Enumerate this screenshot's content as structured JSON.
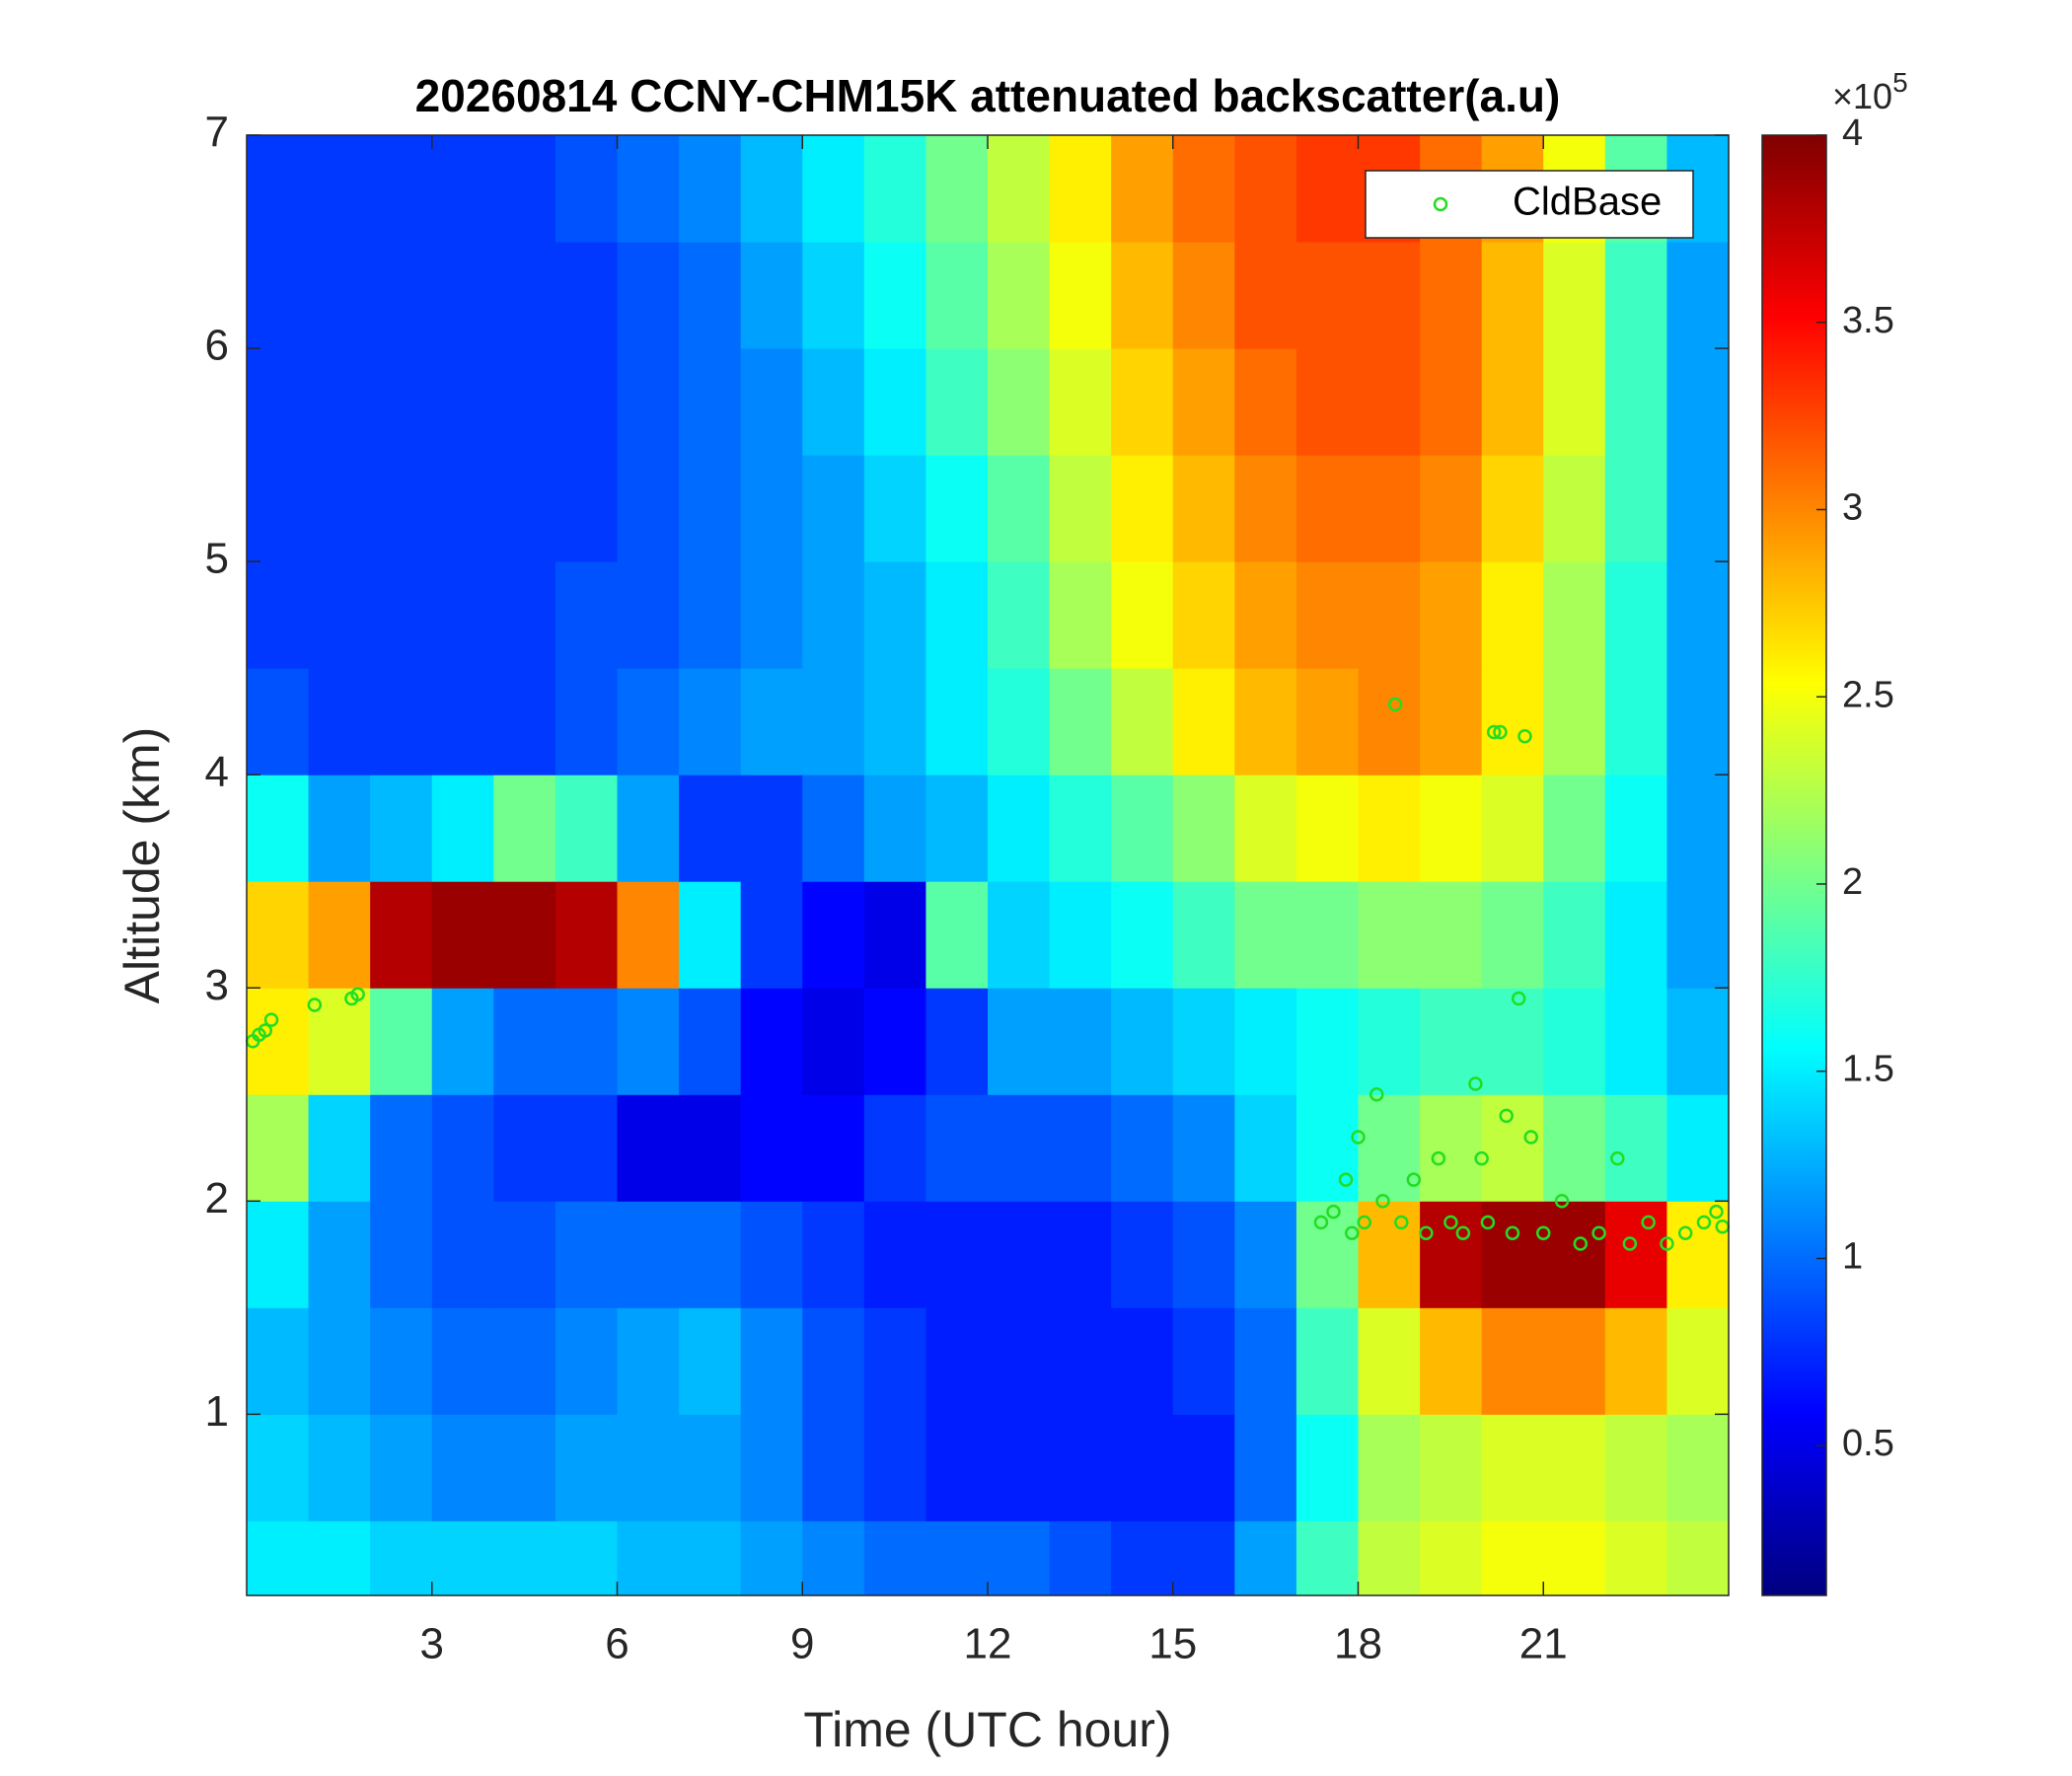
{
  "chart_data": {
    "type": "heatmap",
    "title": "20260814 CCNY-CHM15K attenuated backscatter(a.u)",
    "x_label": "Time (UTC hour)",
    "y_label": "Altitude (km)",
    "xlim": [
      0,
      24
    ],
    "ylim": [
      0.15,
      7
    ],
    "xticks": [
      3,
      6,
      9,
      12,
      15,
      18,
      21
    ],
    "yticks": [
      1,
      2,
      3,
      4,
      5,
      6,
      7
    ],
    "x_edges": [
      0,
      1,
      2,
      3,
      4,
      5,
      6,
      7,
      8,
      9,
      10,
      11,
      12,
      13,
      14,
      15,
      16,
      17,
      18,
      19,
      20,
      21,
      22,
      23,
      24
    ],
    "y_edges": [
      0.15,
      0.5,
      1,
      1.5,
      2,
      2.5,
      3,
      3.5,
      4,
      4.5,
      5,
      5.5,
      6,
      6.5,
      7
    ],
    "values": [
      [
        1.5,
        1.5,
        1.4,
        1.4,
        1.4,
        1.4,
        1.3,
        1.3,
        1.2,
        1.1,
        1.0,
        1.0,
        1.0,
        0.9,
        0.8,
        0.8,
        1.2,
        1.8,
        2.3,
        2.4,
        2.5,
        2.5,
        2.4,
        2.3
      ],
      [
        1.4,
        1.3,
        1.2,
        1.1,
        1.1,
        1.2,
        1.2,
        1.2,
        1.1,
        0.9,
        0.8,
        0.7,
        0.7,
        0.7,
        0.7,
        0.7,
        1.0,
        1.6,
        2.2,
        2.3,
        2.4,
        2.4,
        2.3,
        2.2
      ],
      [
        1.3,
        1.2,
        1.1,
        1.0,
        1.0,
        1.1,
        1.2,
        1.3,
        1.1,
        0.9,
        0.8,
        0.7,
        0.7,
        0.7,
        0.7,
        0.8,
        1.0,
        1.8,
        2.4,
        2.8,
        3.0,
        3.0,
        2.8,
        2.4
      ],
      [
        1.5,
        1.2,
        1.0,
        0.9,
        0.9,
        1.0,
        1.0,
        1.0,
        0.9,
        0.8,
        0.7,
        0.7,
        0.7,
        0.7,
        0.8,
        0.9,
        1.1,
        2.0,
        2.8,
        3.8,
        3.9,
        3.9,
        3.6,
        2.6
      ],
      [
        2.2,
        1.4,
        1.0,
        0.9,
        0.8,
        0.8,
        0.5,
        0.5,
        0.6,
        0.6,
        0.8,
        0.9,
        0.9,
        0.9,
        1.0,
        1.1,
        1.4,
        1.6,
        2.0,
        2.2,
        2.3,
        2.0,
        1.8,
        1.5
      ],
      [
        2.6,
        2.4,
        1.9,
        1.2,
        1.0,
        1.0,
        1.1,
        0.9,
        0.6,
        0.5,
        0.6,
        0.8,
        1.2,
        1.2,
        1.3,
        1.4,
        1.5,
        1.6,
        1.7,
        1.8,
        1.8,
        1.7,
        1.5,
        1.3
      ],
      [
        2.7,
        2.9,
        3.8,
        3.9,
        3.9,
        3.8,
        3.0,
        1.5,
        0.8,
        0.6,
        0.5,
        1.9,
        1.4,
        1.5,
        1.6,
        1.8,
        2.0,
        2.0,
        2.1,
        2.1,
        2.0,
        1.8,
        1.5,
        1.2
      ],
      [
        1.6,
        1.2,
        1.3,
        1.5,
        2.0,
        1.8,
        1.2,
        0.8,
        0.8,
        1.0,
        1.2,
        1.3,
        1.5,
        1.7,
        1.9,
        2.1,
        2.4,
        2.5,
        2.6,
        2.5,
        2.4,
        2.0,
        1.6,
        1.2
      ],
      [
        0.9,
        0.8,
        0.8,
        0.8,
        0.8,
        0.9,
        1.0,
        1.1,
        1.2,
        1.2,
        1.3,
        1.5,
        1.7,
        2.0,
        2.3,
        2.6,
        2.8,
        2.9,
        3.0,
        2.9,
        2.6,
        2.2,
        1.7,
        1.2
      ],
      [
        0.8,
        0.8,
        0.8,
        0.8,
        0.8,
        0.9,
        0.9,
        1.0,
        1.1,
        1.2,
        1.3,
        1.5,
        1.8,
        2.2,
        2.5,
        2.7,
        2.9,
        3.0,
        3.0,
        2.9,
        2.6,
        2.2,
        1.7,
        1.2
      ],
      [
        0.8,
        0.8,
        0.8,
        0.8,
        0.8,
        0.8,
        0.9,
        1.0,
        1.1,
        1.2,
        1.4,
        1.6,
        1.9,
        2.3,
        2.6,
        2.8,
        3.0,
        3.1,
        3.1,
        3.0,
        2.7,
        2.3,
        1.8,
        1.2
      ],
      [
        0.8,
        0.8,
        0.8,
        0.8,
        0.8,
        0.8,
        0.9,
        1.0,
        1.1,
        1.3,
        1.5,
        1.8,
        2.1,
        2.4,
        2.7,
        2.9,
        3.1,
        3.2,
        3.2,
        3.1,
        2.8,
        2.4,
        1.8,
        1.2
      ],
      [
        0.8,
        0.8,
        0.8,
        0.8,
        0.8,
        0.8,
        0.9,
        1.0,
        1.2,
        1.4,
        1.6,
        1.9,
        2.2,
        2.5,
        2.8,
        3.0,
        3.2,
        3.2,
        3.2,
        3.1,
        2.8,
        2.4,
        1.8,
        1.2
      ],
      [
        0.8,
        0.8,
        0.8,
        0.8,
        0.8,
        0.9,
        1.0,
        1.1,
        1.3,
        1.5,
        1.7,
        2.0,
        2.3,
        2.6,
        2.9,
        3.1,
        3.2,
        3.3,
        3.3,
        3.1,
        2.9,
        2.5,
        1.9,
        1.3
      ]
    ],
    "colormap": "jet",
    "clim": [
      0.1,
      4
    ],
    "colorbar_ticks": [
      0.5,
      1,
      1.5,
      2,
      2.5,
      3,
      3.5,
      4
    ],
    "colorbar_multiplier": "×10",
    "colorbar_exponent": "5",
    "legend": "upper right",
    "series": [
      {
        "name": "CldBase",
        "type": "scatter",
        "color": "#22dd22",
        "x": [
          0.1,
          0.2,
          0.3,
          0.4,
          1.1,
          1.7,
          1.8,
          17.4,
          17.6,
          17.8,
          17.9,
          18.0,
          18.1,
          18.3,
          18.4,
          18.6,
          18.7,
          18.9,
          19.1,
          19.3,
          19.5,
          19.7,
          19.9,
          20.0,
          20.1,
          20.2,
          20.3,
          20.4,
          20.5,
          20.6,
          20.7,
          20.8,
          21.0,
          21.3,
          21.6,
          21.9,
          22.2,
          22.4,
          22.7,
          23.0,
          23.3,
          23.6,
          23.8,
          23.9
        ],
        "y": [
          2.75,
          2.78,
          2.8,
          2.85,
          2.92,
          2.95,
          2.97,
          1.9,
          1.95,
          2.1,
          1.85,
          2.3,
          1.9,
          2.5,
          2.0,
          4.33,
          1.9,
          2.1,
          1.85,
          2.2,
          1.9,
          1.85,
          2.55,
          2.2,
          1.9,
          4.2,
          4.2,
          2.4,
          1.85,
          2.95,
          4.18,
          2.3,
          1.85,
          2.0,
          1.8,
          1.85,
          2.2,
          1.8,
          1.9,
          1.8,
          1.85,
          1.9,
          1.95,
          1.88
        ]
      }
    ]
  }
}
